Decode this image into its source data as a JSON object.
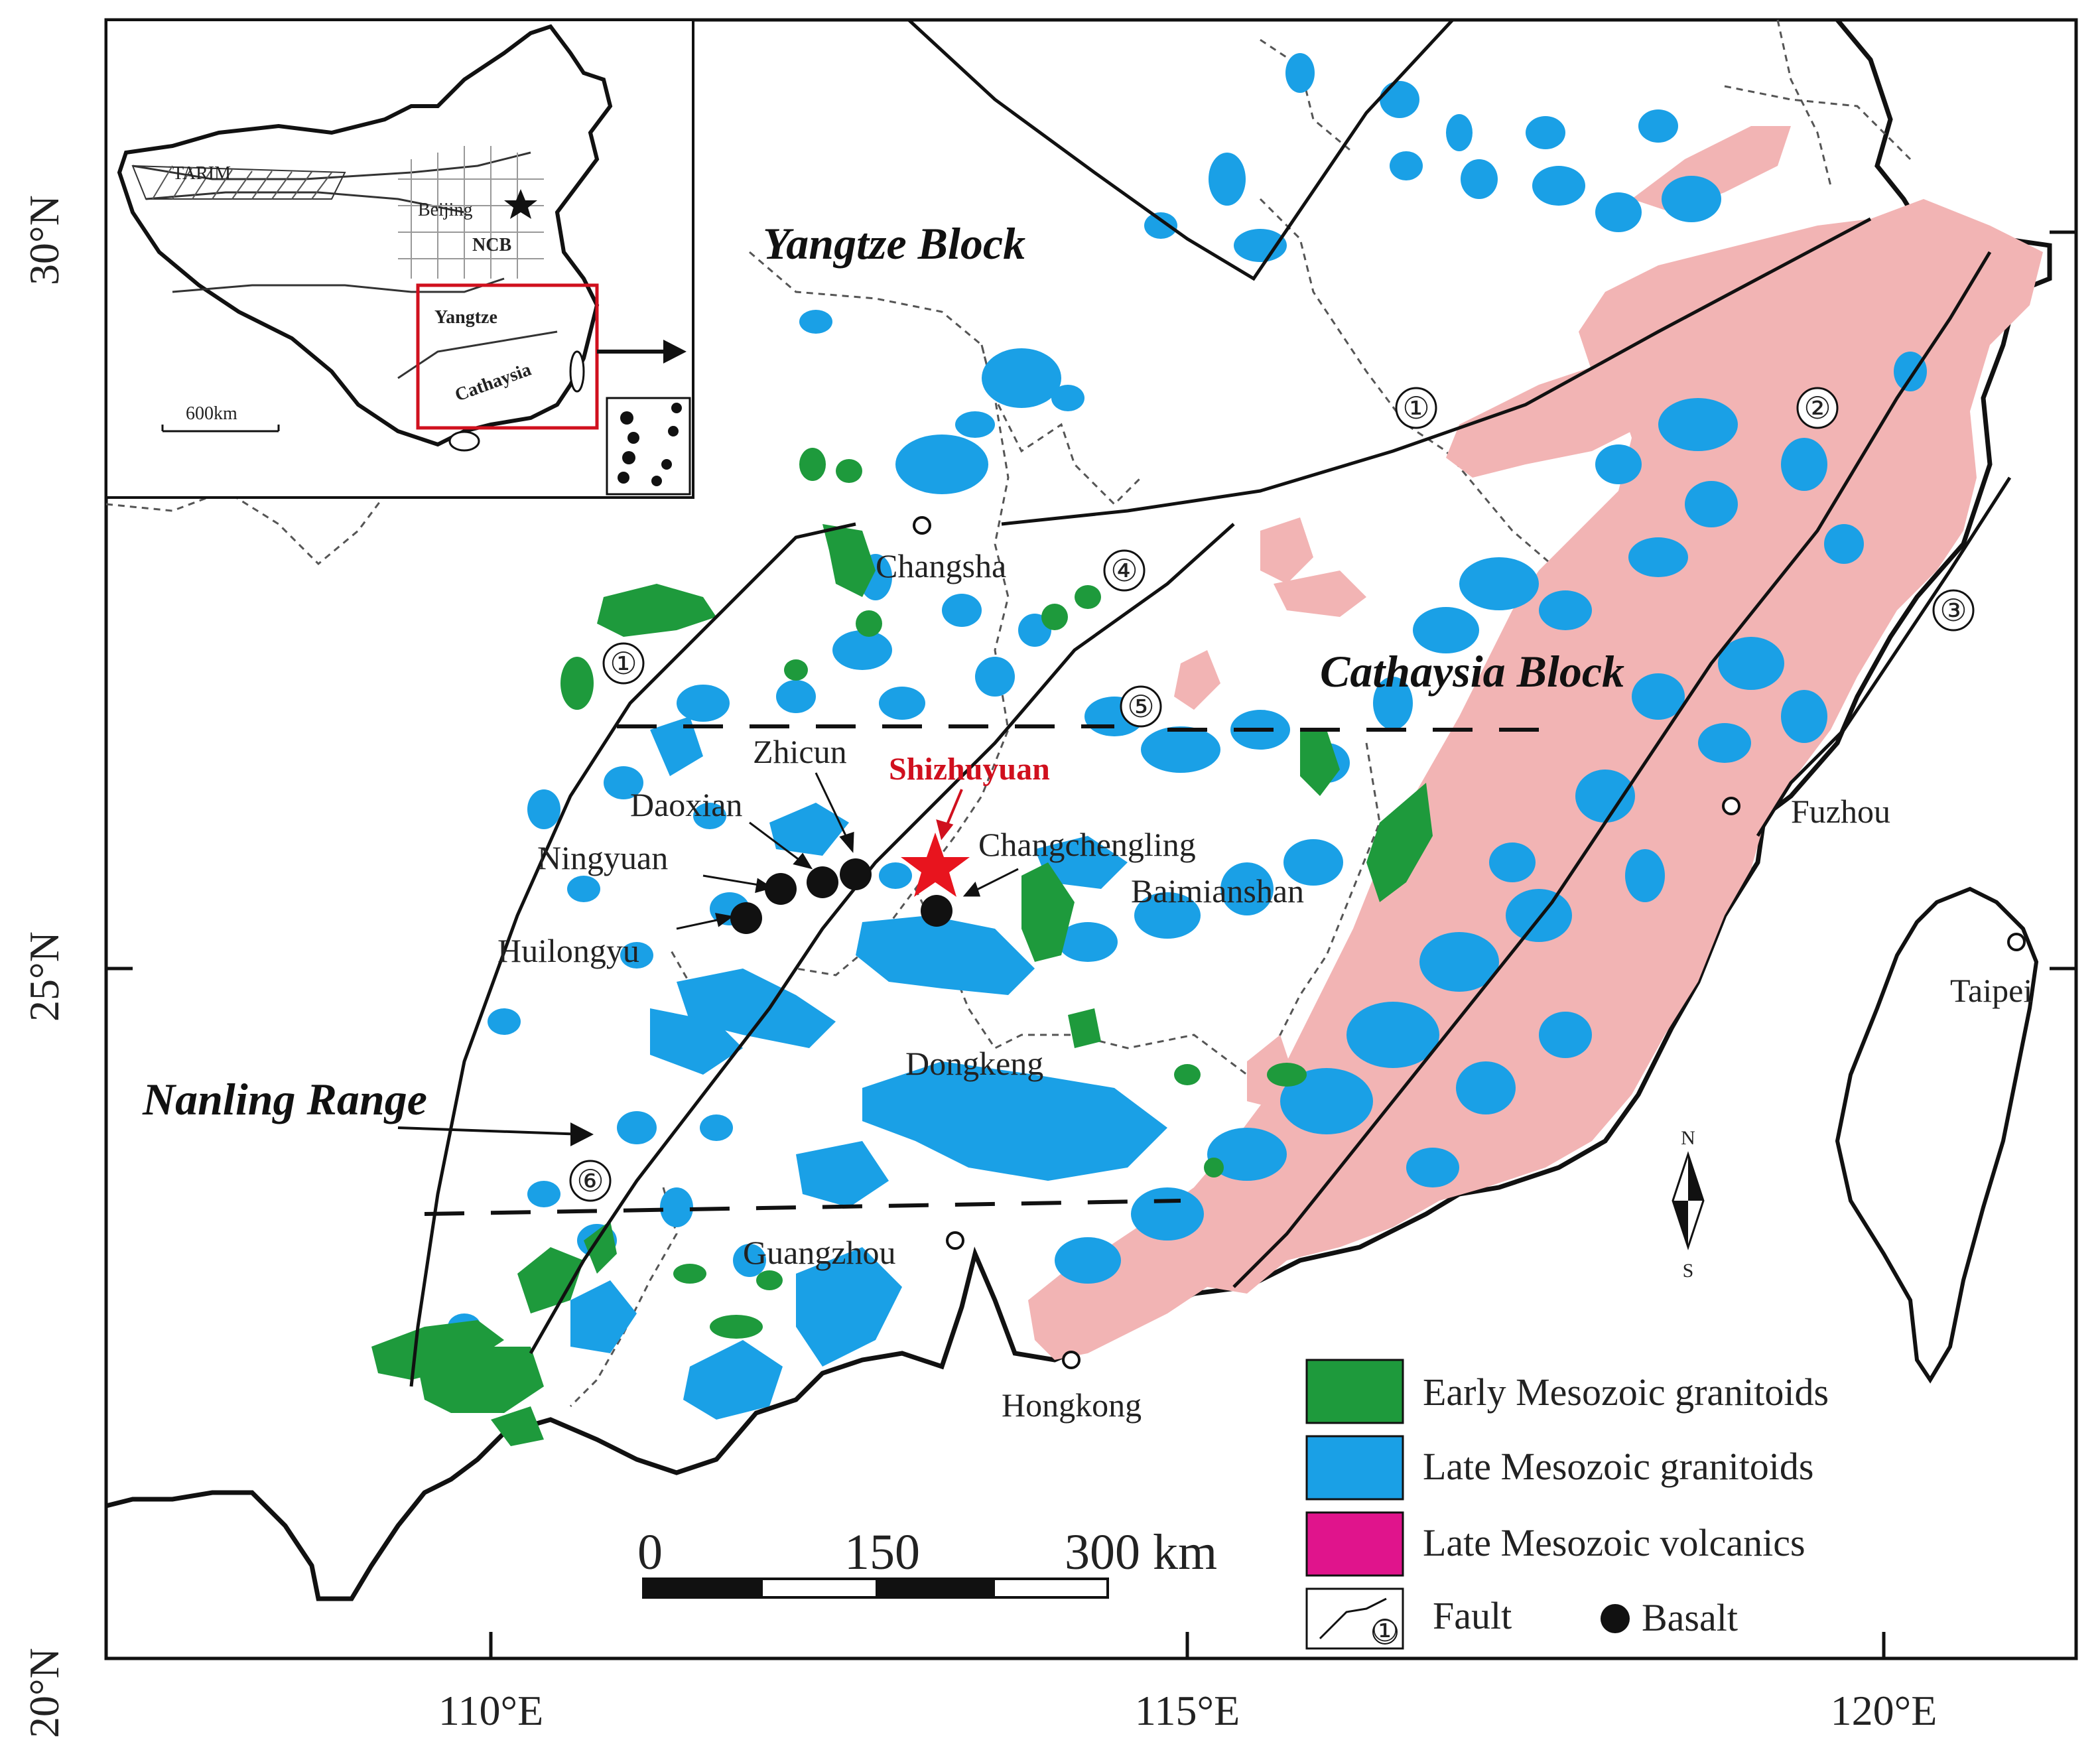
{
  "axes": {
    "lat_labels": [
      "30°N",
      "25°N",
      "20°N"
    ],
    "lon_labels": [
      "110°E",
      "115°E",
      "120°E"
    ]
  },
  "regions": {
    "yangtze": "Yangtze Block",
    "cathaysia": "Cathaysia Block",
    "nanling": "Nanling Range"
  },
  "places": {
    "changsha": "Changsha",
    "guangzhou": "Guangzhou",
    "hongkong": "Hongkong",
    "fuzhou": "Fuzhou",
    "taipei": "Taipei",
    "dongkeng": "Dongkeng",
    "zhicun": "Zhicun",
    "daoxian": "Daoxian",
    "ningyuan": "Ningyuan",
    "huilongyu": "Huilongyu",
    "changchengling": "Changchengling",
    "baimianshan": "Baimianshan"
  },
  "featured_site": "Shizhuyuan",
  "faults": [
    "①",
    "②",
    "③",
    "④",
    "⑤",
    "⑥"
  ],
  "inset": {
    "tarim": "TARIM",
    "beijing": "Beijing",
    "ncb": "NCB",
    "yangtze": "Yangtze",
    "cathaysia": "Cathaysia",
    "scale": "600km"
  },
  "scale_bar": {
    "ticks": [
      "0",
      "150",
      "300 km"
    ]
  },
  "compass": {
    "north": "N",
    "south": "S"
  },
  "legend": {
    "early_granitoids": "Early Mesozoic granitoids",
    "late_granitoids": "Late Mesozoic granitoids",
    "late_volcanics": "Late Mesozoic volcanics",
    "fault": "Fault",
    "fault_symbol": "①",
    "basalt": "Basalt"
  },
  "colors": {
    "early_granitoids": "#1e9a3c",
    "late_granitoids": "#1aa0e6",
    "late_volcanics_legend": "#e0148c",
    "late_volcanics_map": "#f2b4b4",
    "featured": "#e8141e"
  }
}
